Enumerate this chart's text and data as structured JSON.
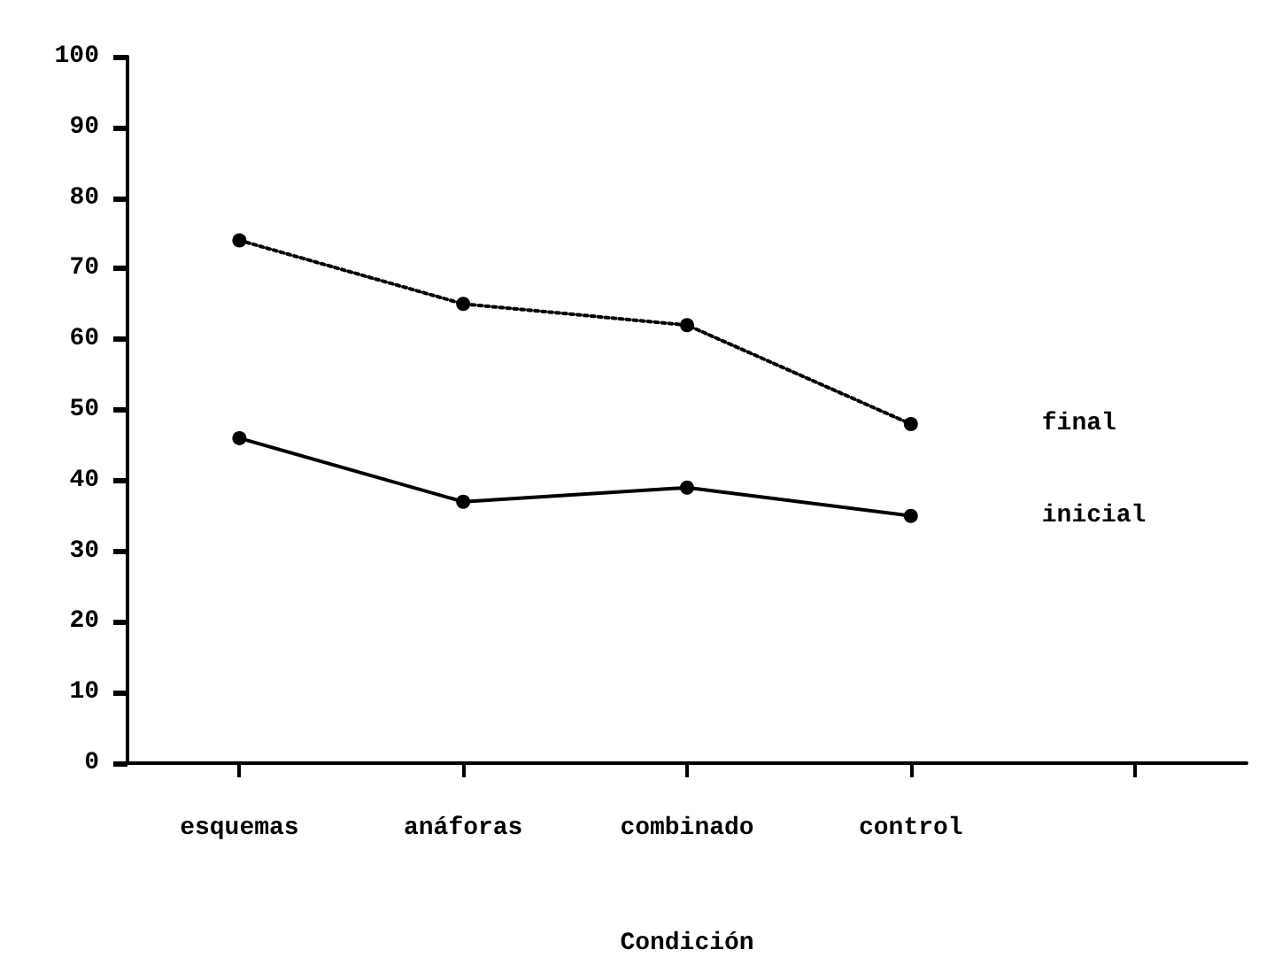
{
  "chart_data": {
    "type": "line",
    "xlabel": "Condición",
    "categories": [
      "esquemas",
      "anáforas",
      "combinado",
      "control",
      null
    ],
    "series": [
      {
        "name": "final",
        "color": "#000000",
        "line_style": "dotted",
        "marker": "circle",
        "values": [
          74,
          65,
          62,
          48,
          null
        ]
      },
      {
        "name": "inicial",
        "color": "#000000",
        "line_style": "solid",
        "marker": "circle",
        "values": [
          46,
          37,
          39,
          35,
          null
        ]
      }
    ],
    "ylim": [
      0,
      100
    ],
    "yticks": [
      0,
      10,
      20,
      30,
      40,
      50,
      60,
      70,
      80,
      90,
      100
    ],
    "grid": false,
    "legend": false
  }
}
